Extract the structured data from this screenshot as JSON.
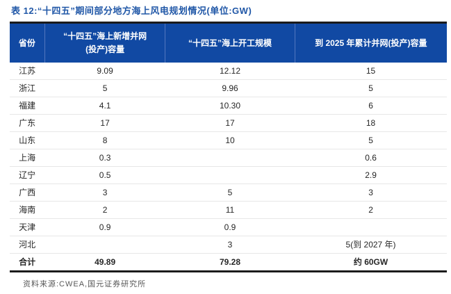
{
  "title": "表 12:“十四五”期间部分地方海上风电规划情况(单位:GW)",
  "table": {
    "columns": [
      "省份",
      "“十四五”海上新增并网\n(投产)容量",
      "“十四五”海上开工规模",
      "到 2025 年累计并网(投产)容量"
    ],
    "rows": [
      [
        "江苏",
        "9.09",
        "12.12",
        "15"
      ],
      [
        "浙江",
        "5",
        "9.96",
        "5"
      ],
      [
        "福建",
        "4.1",
        "10.30",
        "6"
      ],
      [
        "广东",
        "17",
        "17",
        "18"
      ],
      [
        "山东",
        "8",
        "10",
        "5"
      ],
      [
        "上海",
        "0.3",
        "",
        "0.6"
      ],
      [
        "辽宁",
        "0.5",
        "",
        "2.9"
      ],
      [
        "广西",
        "3",
        "5",
        "3"
      ],
      [
        "海南",
        "2",
        "11",
        "2"
      ],
      [
        "天津",
        "0.9",
        "0.9",
        ""
      ],
      [
        "河北",
        "",
        "3",
        "5(到 2027 年)"
      ]
    ],
    "total_row": [
      "合计",
      "49.89",
      "79.28",
      "约 60GW"
    ]
  },
  "footer": {
    "source": "资料来源:CWEA,国元证券研究所"
  },
  "colors": {
    "title_blue": "#2057A7",
    "header_background": "#1149A3",
    "header_divider": "#5377BF",
    "thick_border": "#1b1b1b",
    "row_separator": "#e7e7e7",
    "body_text": "#262626",
    "footer_text": "#595959"
  },
  "chart_data": {
    "type": "table",
    "title": "表 12:“十四五”期间部分地方海上风电规划情况(单位:GW)",
    "categories": [
      "江苏",
      "浙江",
      "福建",
      "广东",
      "山东",
      "上海",
      "辽宁",
      "广西",
      "海南",
      "天津",
      "河北",
      "合计"
    ],
    "series": [
      {
        "name": "“十四五”海上新增并网(投产)容量",
        "values": [
          9.09,
          5,
          4.1,
          17,
          8,
          0.3,
          0.5,
          3,
          2,
          0.9,
          null,
          49.89
        ]
      },
      {
        "name": "“十四五”海上开工规模",
        "values": [
          12.12,
          9.96,
          10.3,
          17,
          10,
          null,
          null,
          5,
          11,
          0.9,
          3,
          79.28
        ]
      },
      {
        "name": "到 2025 年累计并网(投产)容量",
        "values": [
          "15",
          "5",
          "6",
          "18",
          "5",
          "0.6",
          "2.9",
          "3",
          "2",
          "",
          "5(到 2027 年)",
          "约 60GW"
        ]
      }
    ]
  }
}
